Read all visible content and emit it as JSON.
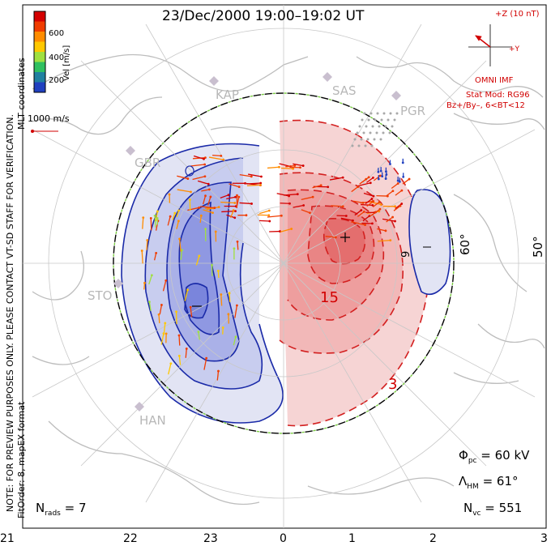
{
  "title": "23/Dec/2000 19:00–19:02 UT",
  "colorbar": {
    "label": "Vel [m/s]",
    "ticks": [
      "600",
      "400",
      "200"
    ],
    "colors": [
      "#d40000",
      "#f03c00",
      "#ff8c00",
      "#ffc800",
      "#a0e040",
      "#30c060",
      "#2080a0",
      "#2040c0"
    ]
  },
  "side_note": "NOTE: FOR PREVIEW PURPOSES ONLY. PLEASE CONTACT VT-SD STAFF FOR VERIFICATION.",
  "coords_label": "MLT coordinates",
  "fit_label": "FitOrder: 8, mapEX format",
  "scale_label": "1000 m/s",
  "imf": {
    "z_label": "+Z (10 nT)",
    "y_label": "+Y",
    "source": "OMNI IMF",
    "stat_mod": "Stat Mod: RG96",
    "condition": "Bz+/By–, 6<BT<12"
  },
  "stations": [
    "KAP",
    "SAS",
    "PGR",
    "GBR",
    "STO",
    "HAN"
  ],
  "lat_labels": [
    "60°",
    "50°"
  ],
  "contour_labels": [
    "15",
    "3",
    "9"
  ],
  "mlt_ticks": [
    "21",
    "22",
    "23",
    "0",
    "1",
    "2",
    "3"
  ],
  "stats": {
    "phi_label": "Φ",
    "phi_sub": "pc",
    "phi_value": "= 60 kV",
    "lambda_label": "Λ",
    "lambda_sub": "HM",
    "lambda_value": "= 61°",
    "nvc_label": "N",
    "nvc_sub": "vc",
    "nvc_value": "= 551",
    "nrads_label": "N",
    "nrads_sub": "rads",
    "nrads_value": "= 7"
  },
  "colors": {
    "positive_cell": "#d32020",
    "negative_cell": "#1a2aa8",
    "grid": "#c8c8c8",
    "coast": "#bdbdbd",
    "imf": "#d10000"
  }
}
